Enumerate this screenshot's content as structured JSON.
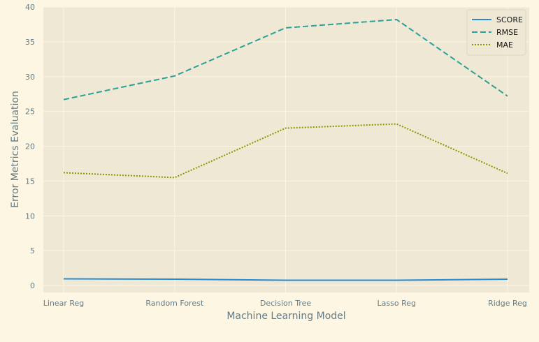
{
  "chart_data": {
    "type": "line",
    "categories": [
      "Linear Reg",
      "Random Forest",
      "Decision Tree",
      "Lasso Reg",
      "Ridge Reg"
    ],
    "series": [
      {
        "name": "SCORE",
        "values": [
          0.95,
          0.9,
          0.75,
          0.75,
          0.9
        ],
        "color": "#268bd2",
        "style": "solid"
      },
      {
        "name": "RMSE",
        "values": [
          26.7,
          30.1,
          37.0,
          38.2,
          27.2
        ],
        "color": "#2aa198",
        "style": "dashed"
      },
      {
        "name": "MAE",
        "values": [
          16.2,
          15.5,
          22.6,
          23.2,
          16.1
        ],
        "color": "#859900",
        "style": "dotted"
      }
    ],
    "xlabel": "Machine Learning Model",
    "ylabel": "Error Metrics Evaluation",
    "ylim": [
      -1,
      40
    ],
    "yticks": [
      0,
      5,
      10,
      15,
      20,
      25,
      30,
      35,
      40
    ],
    "grid": true,
    "legend_position": "top-right",
    "colors": {
      "figure_bg": "#fdf6e3",
      "plot_bg": "#eee8d5",
      "grid": "#fdf6e3",
      "tick_text": "#657b83"
    }
  }
}
